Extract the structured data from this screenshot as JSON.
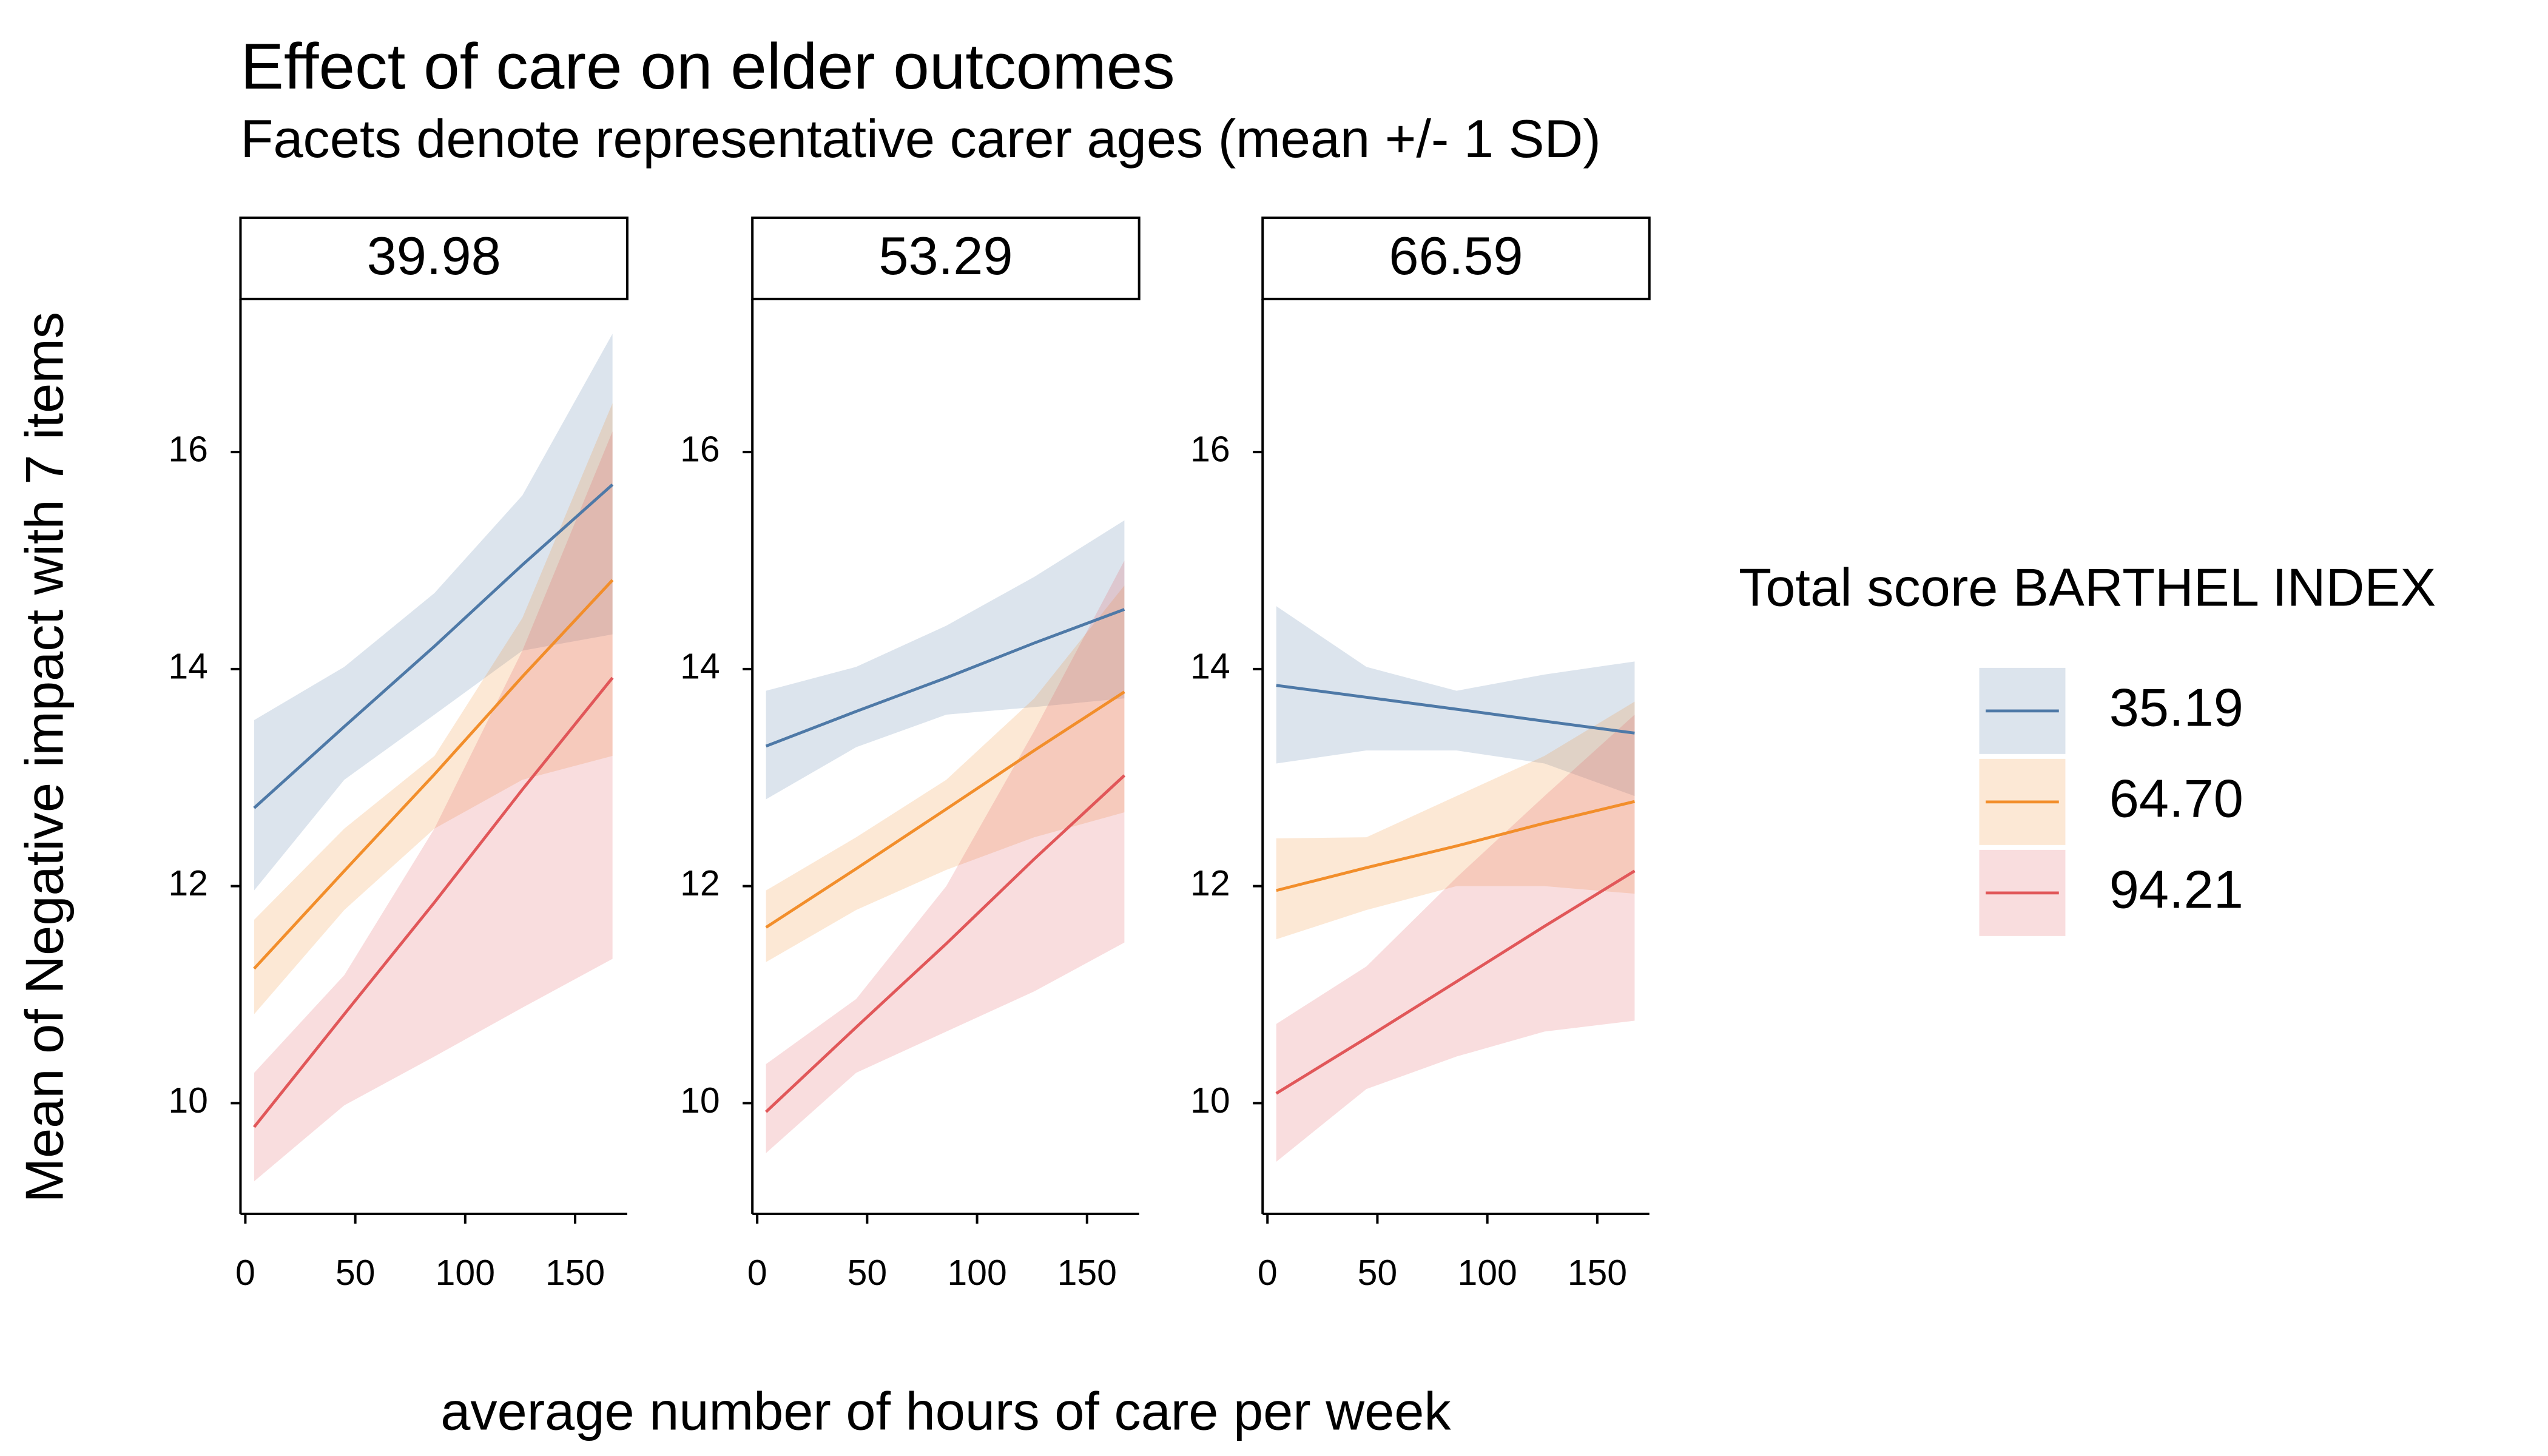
{
  "chart_data": {
    "type": "line",
    "title": "Effect of care on elder outcomes",
    "subtitle": "Facets denote representative carer ages (mean +/- 1 SD)",
    "x_label": "average number of hours of care per week",
    "y_label": "Mean of Negative impact with 7 items",
    "x": [
      4,
      45,
      86,
      126,
      167
    ],
    "xlim": [
      -2.2,
      173.7
    ],
    "xticks": [
      0,
      50,
      100,
      150
    ],
    "ylim": [
      8.98,
      17.41
    ],
    "yticks": [
      10,
      12,
      14,
      16
    ],
    "legend": {
      "title": "Total score BARTHEL INDEX",
      "items": [
        {
          "name": "35.19",
          "color": "#4e79a7"
        },
        {
          "name": "64.70",
          "color": "#f28e2b"
        },
        {
          "name": "94.21",
          "color": "#e15759"
        }
      ]
    },
    "facets": [
      {
        "label": "39.98",
        "series": [
          {
            "values": [
              12.72,
              13.47,
              14.21,
              14.96,
              15.7
            ],
            "lower": [
              11.96,
              12.98,
              13.58,
              14.17,
              14.32
            ],
            "upper": [
              13.53,
              14.02,
              14.7,
              15.6,
              17.09
            ]
          },
          {
            "values": [
              11.24,
              12.14,
              13.03,
              13.93,
              14.82
            ],
            "lower": [
              10.82,
              11.78,
              12.53,
              12.98,
              13.2
            ],
            "upper": [
              11.69,
              12.53,
              13.2,
              14.47,
              16.45
            ]
          },
          {
            "values": [
              9.78,
              10.82,
              11.85,
              12.89,
              13.92
            ],
            "lower": [
              9.28,
              9.98,
              10.43,
              10.88,
              11.33
            ],
            "upper": [
              10.28,
              11.18,
              12.53,
              14.17,
              16.19
            ]
          }
        ]
      },
      {
        "label": "53.29",
        "series": [
          {
            "values": [
              13.29,
              13.61,
              13.92,
              14.24,
              14.55
            ],
            "lower": [
              12.8,
              13.28,
              13.58,
              13.65,
              13.73
            ],
            "upper": [
              13.8,
              14.02,
              14.4,
              14.85,
              15.37
            ]
          },
          {
            "values": [
              11.62,
              12.16,
              12.71,
              13.25,
              13.79
            ],
            "lower": [
              11.3,
              11.78,
              12.15,
              12.45,
              12.68
            ],
            "upper": [
              11.96,
              12.45,
              12.98,
              13.73,
              14.77
            ]
          },
          {
            "values": [
              9.92,
              10.7,
              11.47,
              12.25,
              13.02
            ],
            "lower": [
              9.54,
              10.28,
              10.66,
              11.03,
              11.48
            ],
            "upper": [
              10.36,
              10.96,
              12.0,
              13.43,
              15.0
            ]
          }
        ]
      },
      {
        "label": "66.59",
        "series": [
          {
            "values": [
              13.85,
              13.74,
              13.63,
              13.52,
              13.41
            ],
            "lower": [
              13.13,
              13.25,
              13.25,
              13.13,
              12.83
            ],
            "upper": [
              14.58,
              14.02,
              13.8,
              13.95,
              14.07
            ]
          },
          {
            "values": [
              11.96,
              12.17,
              12.37,
              12.58,
              12.78
            ],
            "lower": [
              11.51,
              11.78,
              12.0,
              12.0,
              11.93
            ],
            "upper": [
              12.44,
              12.45,
              12.83,
              13.2,
              13.7
            ]
          },
          {
            "values": [
              10.09,
              10.6,
              11.12,
              11.63,
              12.14
            ],
            "lower": [
              9.46,
              10.13,
              10.43,
              10.66,
              10.76
            ],
            "upper": [
              10.73,
              11.26,
              12.08,
              12.83,
              13.58
            ]
          }
        ]
      }
    ]
  }
}
